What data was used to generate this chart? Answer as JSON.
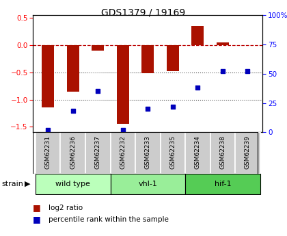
{
  "title": "GDS1379 / 19169",
  "samples": [
    "GSM62231",
    "GSM62236",
    "GSM62237",
    "GSM62232",
    "GSM62233",
    "GSM62235",
    "GSM62234",
    "GSM62238",
    "GSM62239"
  ],
  "log2_ratio": [
    -1.15,
    -0.85,
    -0.1,
    -1.45,
    -0.52,
    -0.48,
    0.35,
    0.05,
    0.0
  ],
  "percentile_rank": [
    2,
    18,
    35,
    2,
    20,
    22,
    38,
    52,
    52
  ],
  "groups": [
    {
      "label": "wild type",
      "indices": [
        0,
        1,
        2
      ],
      "color": "#bbffbb"
    },
    {
      "label": "vhl-1",
      "indices": [
        3,
        4,
        5
      ],
      "color": "#99ee99"
    },
    {
      "label": "hif-1",
      "indices": [
        6,
        7,
        8
      ],
      "color": "#55cc55"
    }
  ],
  "ylim_left": [
    -1.6,
    0.55
  ],
  "ylim_right": [
    0,
    100
  ],
  "yticks_left": [
    -1.5,
    -1.0,
    -0.5,
    0.0,
    0.5
  ],
  "yticks_right": [
    0,
    25,
    50,
    75,
    100
  ],
  "bar_color": "#aa1100",
  "dot_color": "#0000bb",
  "hline_color": "#bb0000",
  "grid_color": "#555555",
  "sample_bg": "#cccccc",
  "bar_width": 0.5
}
